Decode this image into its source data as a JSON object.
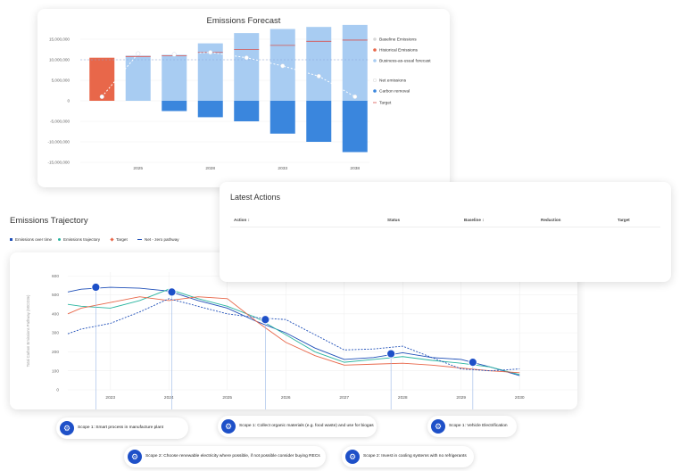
{
  "forecast": {
    "title": "Emissions Forecast",
    "legend": [
      {
        "label": "Baseline Emissions",
        "color": "#d8d8d8"
      },
      {
        "label": "Historical Emissions",
        "color": "#e8674a"
      },
      {
        "label": "Business-as-usual forecast",
        "color": "#a8ccf2"
      },
      {
        "label": "Net emissions",
        "color": "#ffffff"
      },
      {
        "label": "Carbon removal",
        "color": "#3a86dd"
      },
      {
        "label": "Target",
        "color": "#d9534f"
      }
    ],
    "chart_data": {
      "type": "bar",
      "y_ticks": [
        "15,000,000",
        "10,000,000",
        "5,000,000",
        "0",
        "-5,000,000",
        "-10,000,000",
        "-15,000,000"
      ],
      "x_labels": [
        "2025",
        "2028",
        "2033",
        "2038"
      ],
      "ylim": [
        -15000000,
        15000000
      ],
      "bars": [
        {
          "positive": 10500000,
          "negative": 0,
          "historical": true,
          "net": 1000000,
          "target": null
        },
        {
          "positive": 11000000,
          "negative": 0,
          "historical": false,
          "net": 11500000,
          "target": 10800000
        },
        {
          "positive": 11200000,
          "negative": -2500000,
          "historical": false,
          "net": 11300000,
          "target": 11000000
        },
        {
          "positive": 14000000,
          "negative": -4000000,
          "historical": false,
          "net": 11800000,
          "target": 11800000
        },
        {
          "positive": 16500000,
          "negative": -5000000,
          "historical": false,
          "net": 10500000,
          "target": 12500000
        },
        {
          "positive": 17500000,
          "negative": -8000000,
          "historical": false,
          "net": 8500000,
          "target": 13500000
        },
        {
          "positive": 18000000,
          "negative": -10000000,
          "historical": false,
          "net": 6000000,
          "target": 14500000
        },
        {
          "positive": 18500000,
          "negative": -12500000,
          "historical": false,
          "net": 1000000,
          "target": 14800000
        }
      ],
      "baseline_value": 10000000
    }
  },
  "actions": {
    "title": "Latest Actions",
    "headers": [
      "Action",
      "Status",
      "Baseline",
      "Reduction",
      "Target"
    ]
  },
  "trajectory": {
    "title": "Emissions Trajectory",
    "ylabel": "Total Carbon Emissions Pathway (MtCO2e)",
    "legend": [
      {
        "label": "Emissions over time",
        "color": "#1f4fb8"
      },
      {
        "label": "Emissions trajectory",
        "color": "#2bb5a0"
      },
      {
        "label": "Target",
        "color": "#e8674a"
      },
      {
        "label": "Net - zero pathway",
        "color": "#1f4fb8"
      }
    ],
    "chart_data": {
      "type": "line",
      "x_ticks": [
        "2023",
        "2024",
        "2025",
        "2026",
        "2027",
        "2028",
        "2029",
        "2030"
      ],
      "y_ticks": [
        0,
        100,
        200,
        300,
        400,
        500,
        600
      ],
      "ylim": [
        0,
        620
      ],
      "x": [
        2022.0,
        2022.5,
        2023.0,
        2023.5,
        2024.0,
        2024.5,
        2025.0,
        2025.5,
        2026.0,
        2026.5,
        2027.0,
        2027.5,
        2028.0,
        2028.5,
        2029.0,
        2029.5,
        2030.0
      ],
      "series": [
        {
          "name": "Emissions over time",
          "color": "#1f4fb8",
          "dash": false,
          "values": [
            515,
            530,
            540,
            535,
            520,
            470,
            430,
            360,
            300,
            220,
            160,
            170,
            195,
            170,
            160,
            120,
            75
          ]
        },
        {
          "name": "Emissions trajectory",
          "color": "#2bb5a0",
          "dash": false,
          "values": [
            450,
            440,
            430,
            470,
            530,
            480,
            440,
            380,
            290,
            200,
            145,
            160,
            175,
            155,
            140,
            120,
            80
          ]
        },
        {
          "name": "Target",
          "color": "#e8674a",
          "dash": false,
          "values": [
            400,
            430,
            460,
            490,
            470,
            490,
            480,
            360,
            250,
            180,
            130,
            135,
            140,
            130,
            115,
            100,
            90
          ]
        },
        {
          "name": "Net - zero pathway",
          "color": "#1f4fb8",
          "dash": true,
          "values": [
            295,
            320,
            350,
            410,
            480,
            440,
            400,
            380,
            370,
            290,
            210,
            215,
            230,
            170,
            110,
            100,
            110
          ]
        }
      ],
      "milestones": [
        {
          "x": 2022.75,
          "y": 540
        },
        {
          "x": 2024.05,
          "y": 515
        },
        {
          "x": 2025.65,
          "y": 370
        },
        {
          "x": 2027.8,
          "y": 190
        },
        {
          "x": 2029.2,
          "y": 145
        }
      ]
    },
    "scopes": [
      {
        "label": "Scope 1: Smart process in manufacture plant"
      },
      {
        "label": "Scope 2: Choose renewable electricity where possible, if not possible consider buying RECs"
      },
      {
        "label": "Scope 1: Collect organic materials (e.g. food waste) and use for biogas"
      },
      {
        "label": "Scope 2: Invest in cooling systems with no refrigerants"
      },
      {
        "label": "Scope 1: Vehicle Electrification"
      }
    ]
  }
}
